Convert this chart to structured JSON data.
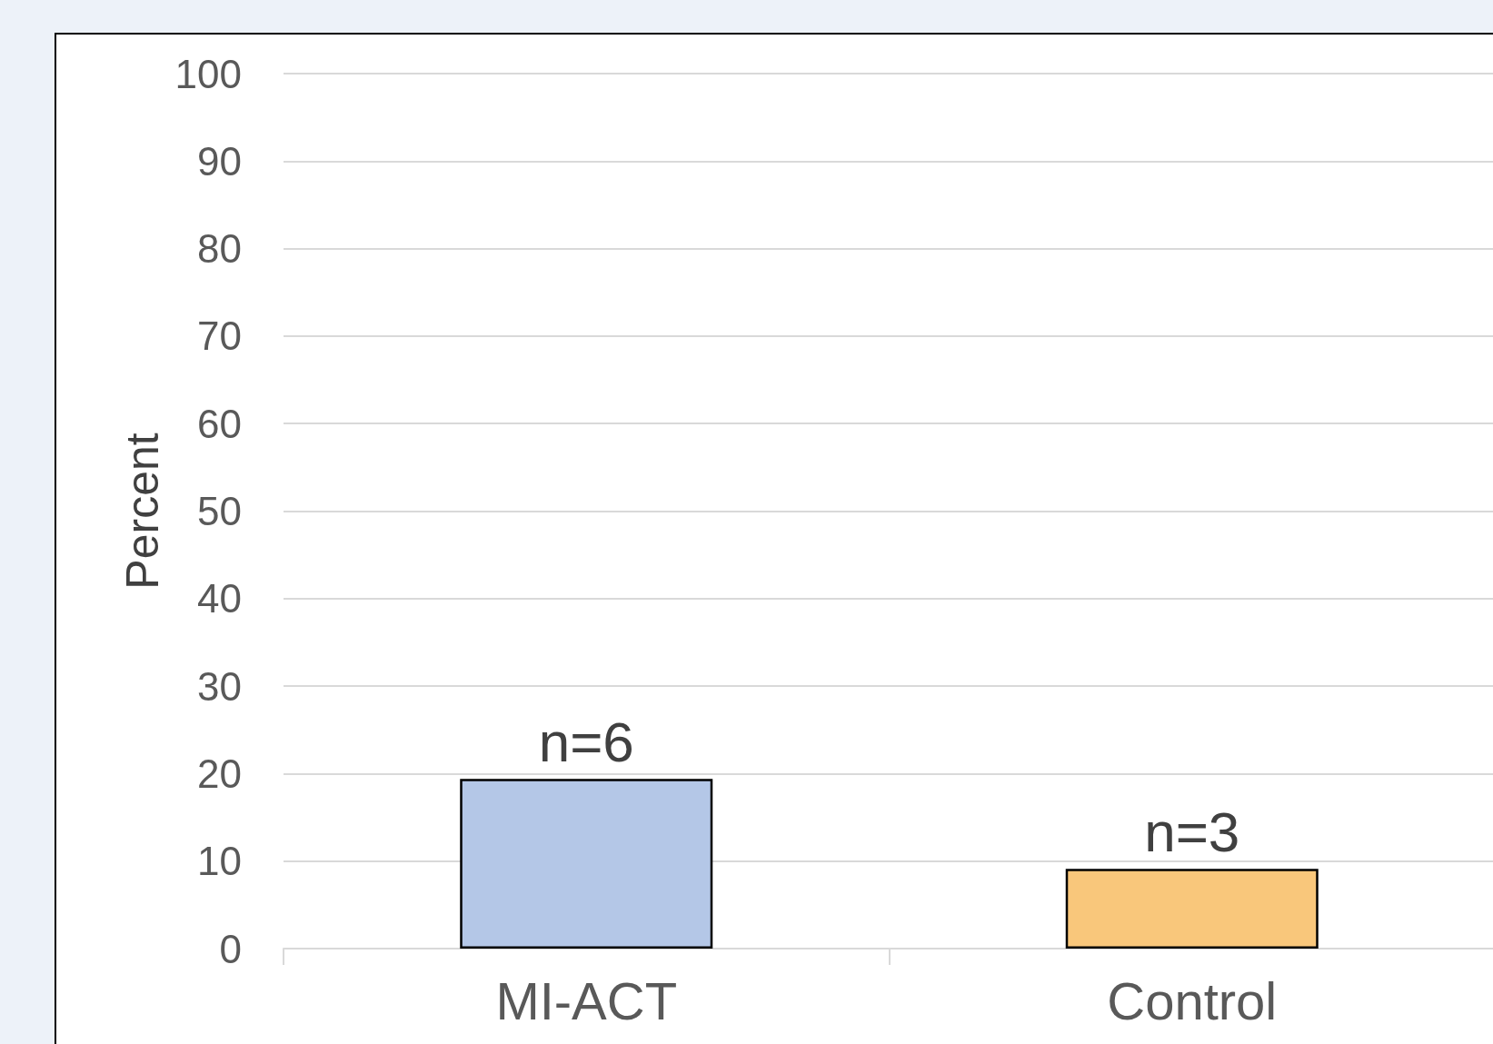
{
  "chart_data": {
    "type": "bar",
    "ylabel": "Percent",
    "categories": [
      "MI-ACT",
      "Control"
    ],
    "values": [
      19.4,
      9.1
    ],
    "colors": [
      "#b4c7e7",
      "#f9c77b"
    ],
    "annotations": [
      {
        "text": "n=6",
        "x": "MI-ACT",
        "y": 19.4
      },
      {
        "text": "n=3",
        "x": "Control",
        "y": 9.1
      }
    ],
    "ylim": [
      0,
      100
    ],
    "yticks": [
      0,
      10,
      20,
      30,
      40,
      50,
      60,
      70,
      80,
      90,
      100
    ],
    "grid": "y"
  }
}
